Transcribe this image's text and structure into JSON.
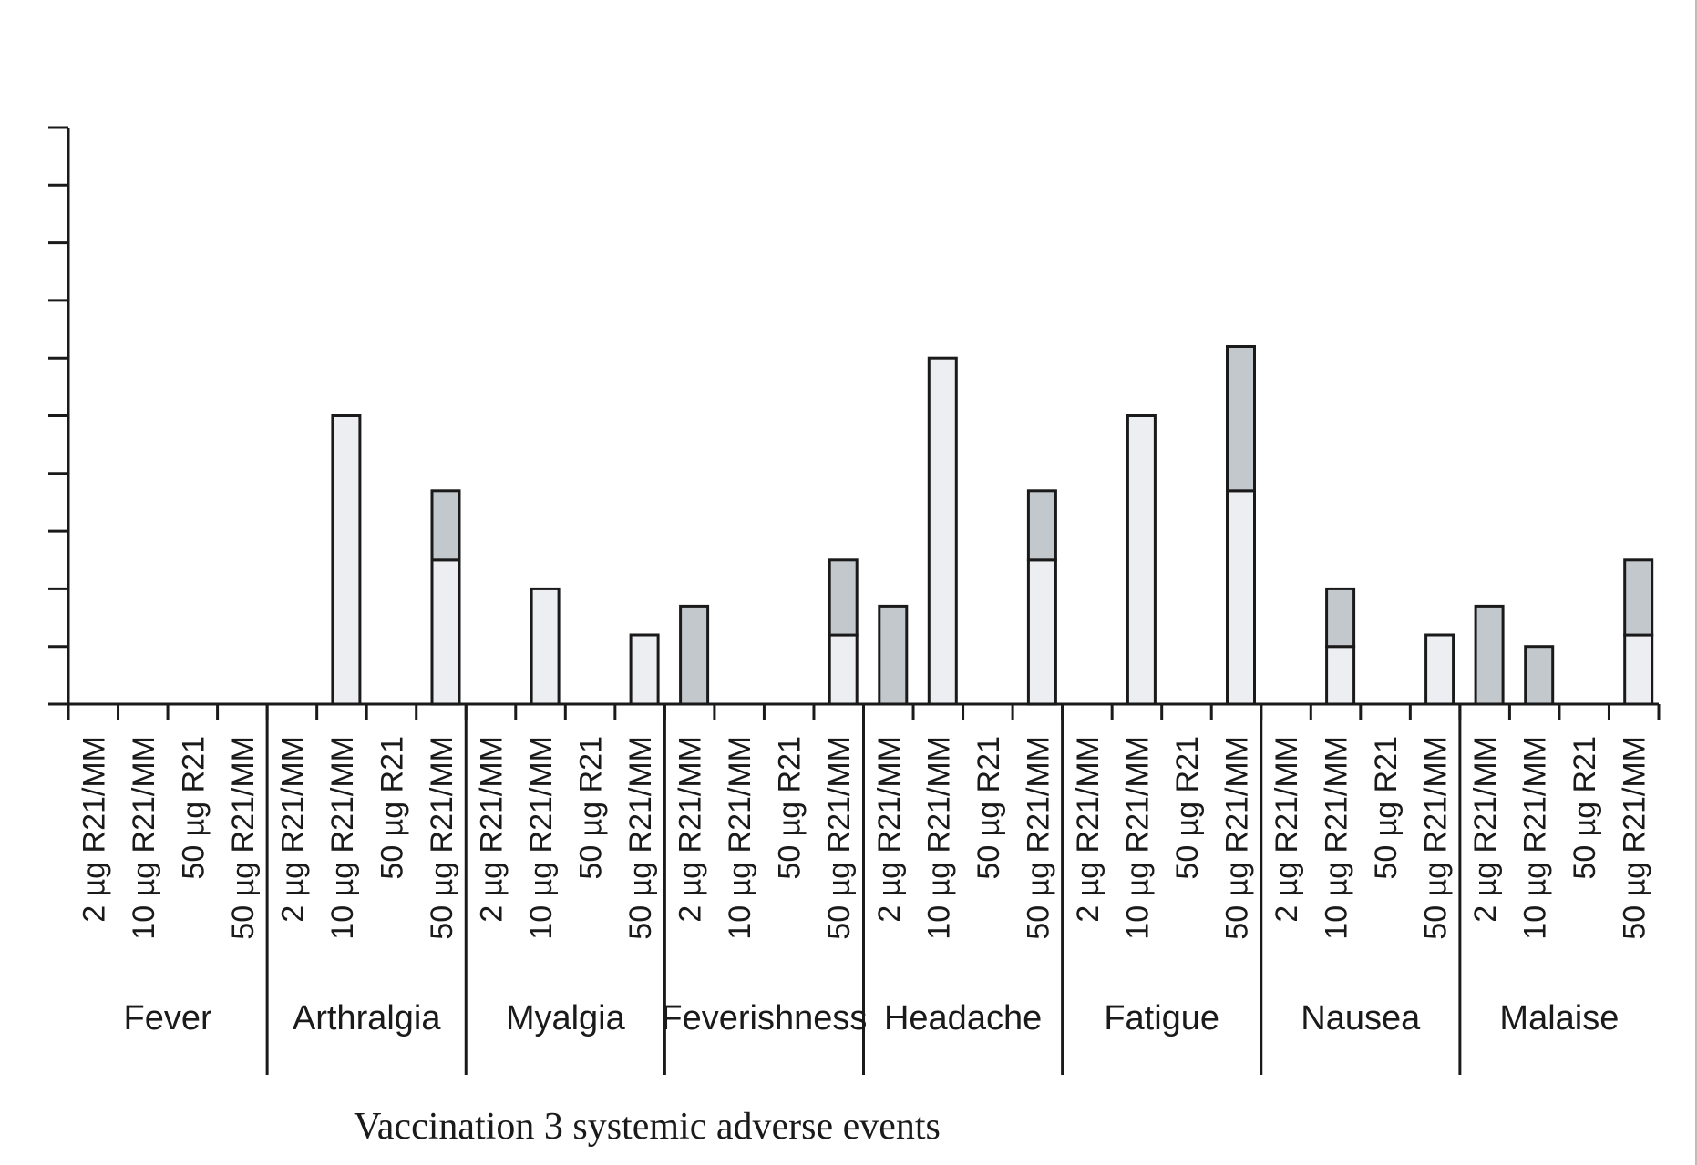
{
  "chart_data": {
    "type": "bar",
    "stacked": true,
    "title": "",
    "xlabel": "Vaccination 3 systemic adverse events",
    "ylabel": "",
    "y_tick_count": 10,
    "ylim": [
      0,
      10
    ],
    "grid": false,
    "groups": [
      "Fever",
      "Arthralgia",
      "Myalgia",
      "Feverishness",
      "Headache",
      "Fatigue",
      "Nausea",
      "Malaise"
    ],
    "categories": [
      "2 µg R21/MM",
      "10 µg R21/MM",
      "50 µg R21",
      "50 µg R21/MM"
    ],
    "colors": {
      "mild": "#eceef1",
      "moderate": "#c3c8cd",
      "outline": "#1a1a1a"
    },
    "series": [
      {
        "values": [
          [
            0,
            0,
            0,
            0
          ],
          [
            0,
            5,
            0,
            2.5
          ],
          [
            0,
            2,
            0,
            1.2
          ],
          [
            0,
            0,
            0,
            1.2
          ],
          [
            0,
            6,
            0,
            2.5
          ],
          [
            0,
            5,
            0,
            3.7
          ],
          [
            0,
            1,
            0,
            1.2
          ],
          [
            0,
            0,
            0,
            1.2
          ]
        ]
      },
      {
        "values": [
          [
            0,
            0,
            0,
            0
          ],
          [
            0,
            0,
            0,
            1.2
          ],
          [
            0,
            0,
            0,
            0
          ],
          [
            1.7,
            0,
            0,
            1.3
          ],
          [
            1.7,
            0,
            0,
            1.2
          ],
          [
            0,
            0,
            0,
            2.5
          ],
          [
            0,
            1,
            0,
            0
          ],
          [
            1.7,
            1,
            0,
            1.3
          ]
        ]
      }
    ]
  }
}
